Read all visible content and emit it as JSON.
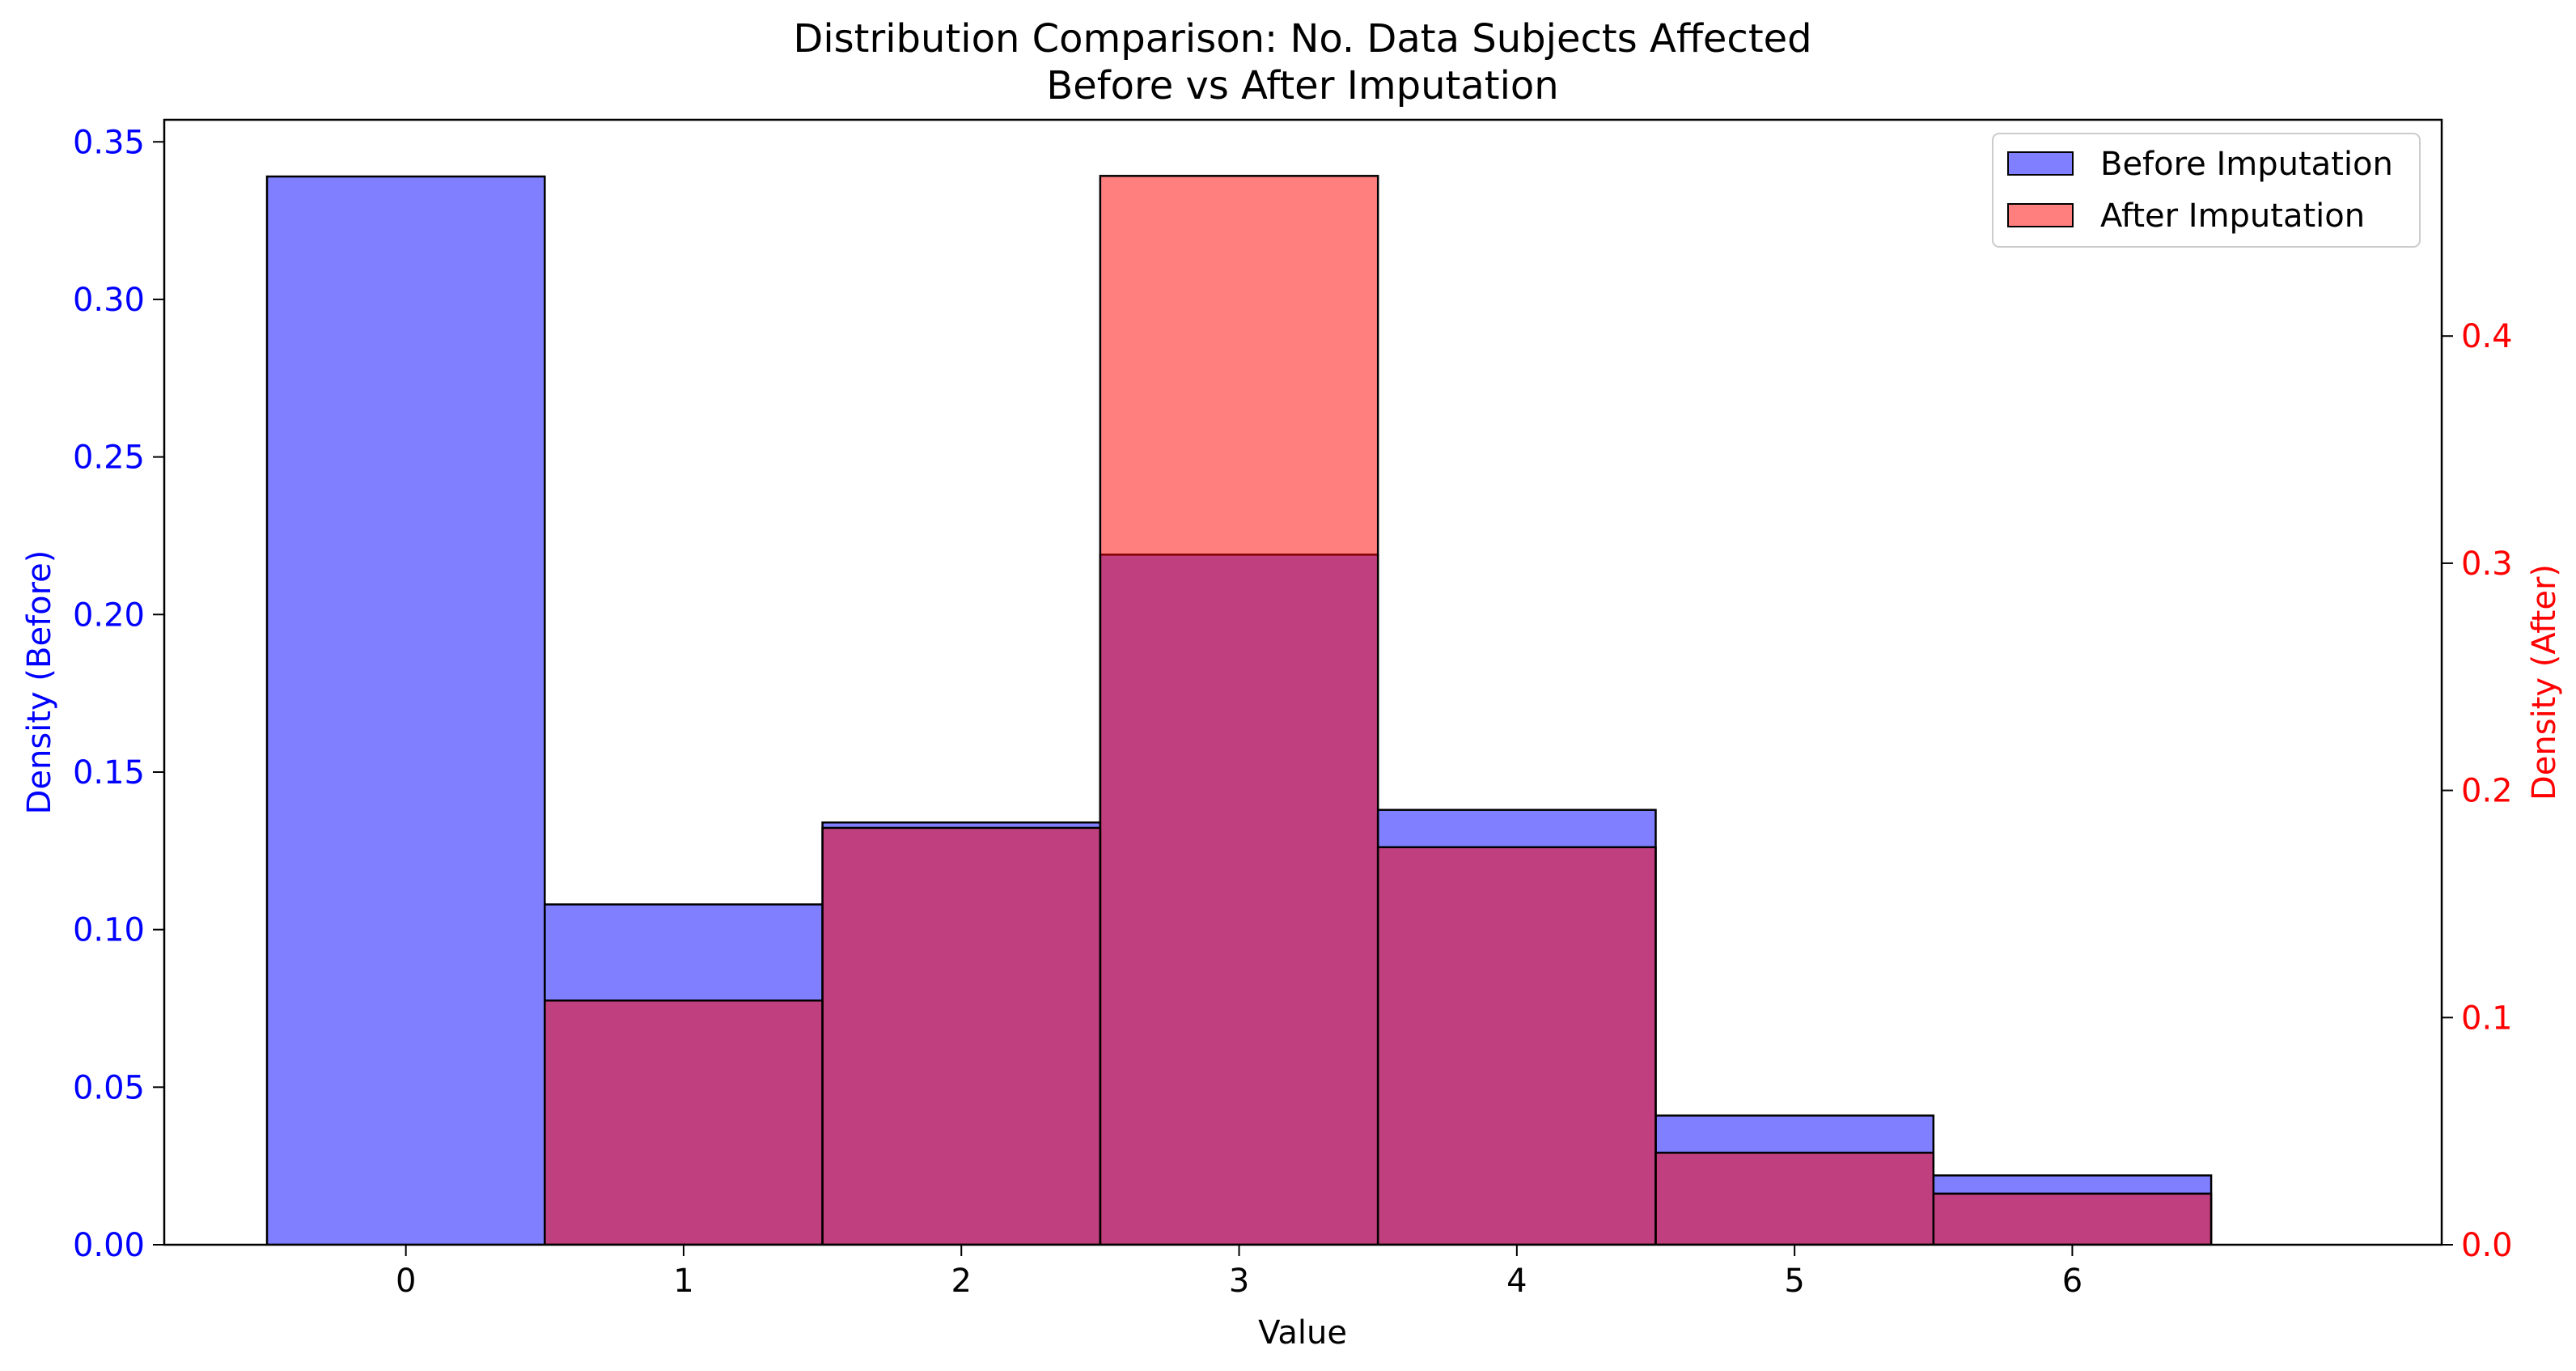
{
  "chart_data": {
    "type": "bar",
    "title": "Distribution Comparison: No. Data Subjects Affected",
    "subtitle": "Before vs After Imputation",
    "xlabel": "Value",
    "ylabel_left": "Density (Before)",
    "ylabel_right": "Density (After)",
    "x_ticks": [
      0,
      1,
      2,
      3,
      4,
      5,
      6
    ],
    "xlim": [
      -0.87,
      7.33
    ],
    "bin_width": 1,
    "y_left": {
      "lim": [
        0,
        0.357
      ],
      "ticks": [
        0.0,
        0.05,
        0.1,
        0.15,
        0.2,
        0.25,
        0.3,
        0.35
      ],
      "tick_labels": [
        "0.00",
        "0.05",
        "0.10",
        "0.15",
        "0.20",
        "0.25",
        "0.30",
        "0.35"
      ],
      "color": "#0000ff"
    },
    "y_right": {
      "lim": [
        0,
        0.4952
      ],
      "ticks": [
        0.0,
        0.1,
        0.2,
        0.3,
        0.4
      ],
      "tick_labels": [
        "0.0",
        "0.1",
        "0.2",
        "0.3",
        "0.4"
      ],
      "color": "#ff0000"
    },
    "series": [
      {
        "name": "Before Imputation",
        "axis": "left",
        "color": "#0000ff",
        "opacity": 0.5,
        "x": [
          0,
          1,
          2,
          3,
          4,
          5,
          6
        ],
        "values": [
          0.339,
          0.108,
          0.134,
          0.219,
          0.138,
          0.041,
          0.022
        ]
      },
      {
        "name": "After Imputation",
        "axis": "right",
        "color": "#ff0000",
        "opacity": 0.5,
        "x": [
          1,
          2,
          3,
          4,
          5,
          6
        ],
        "values": [
          0.1075,
          0.1835,
          0.4705,
          0.175,
          0.0405,
          0.0225
        ]
      }
    ],
    "legend_position": "top-right",
    "grid": false
  }
}
